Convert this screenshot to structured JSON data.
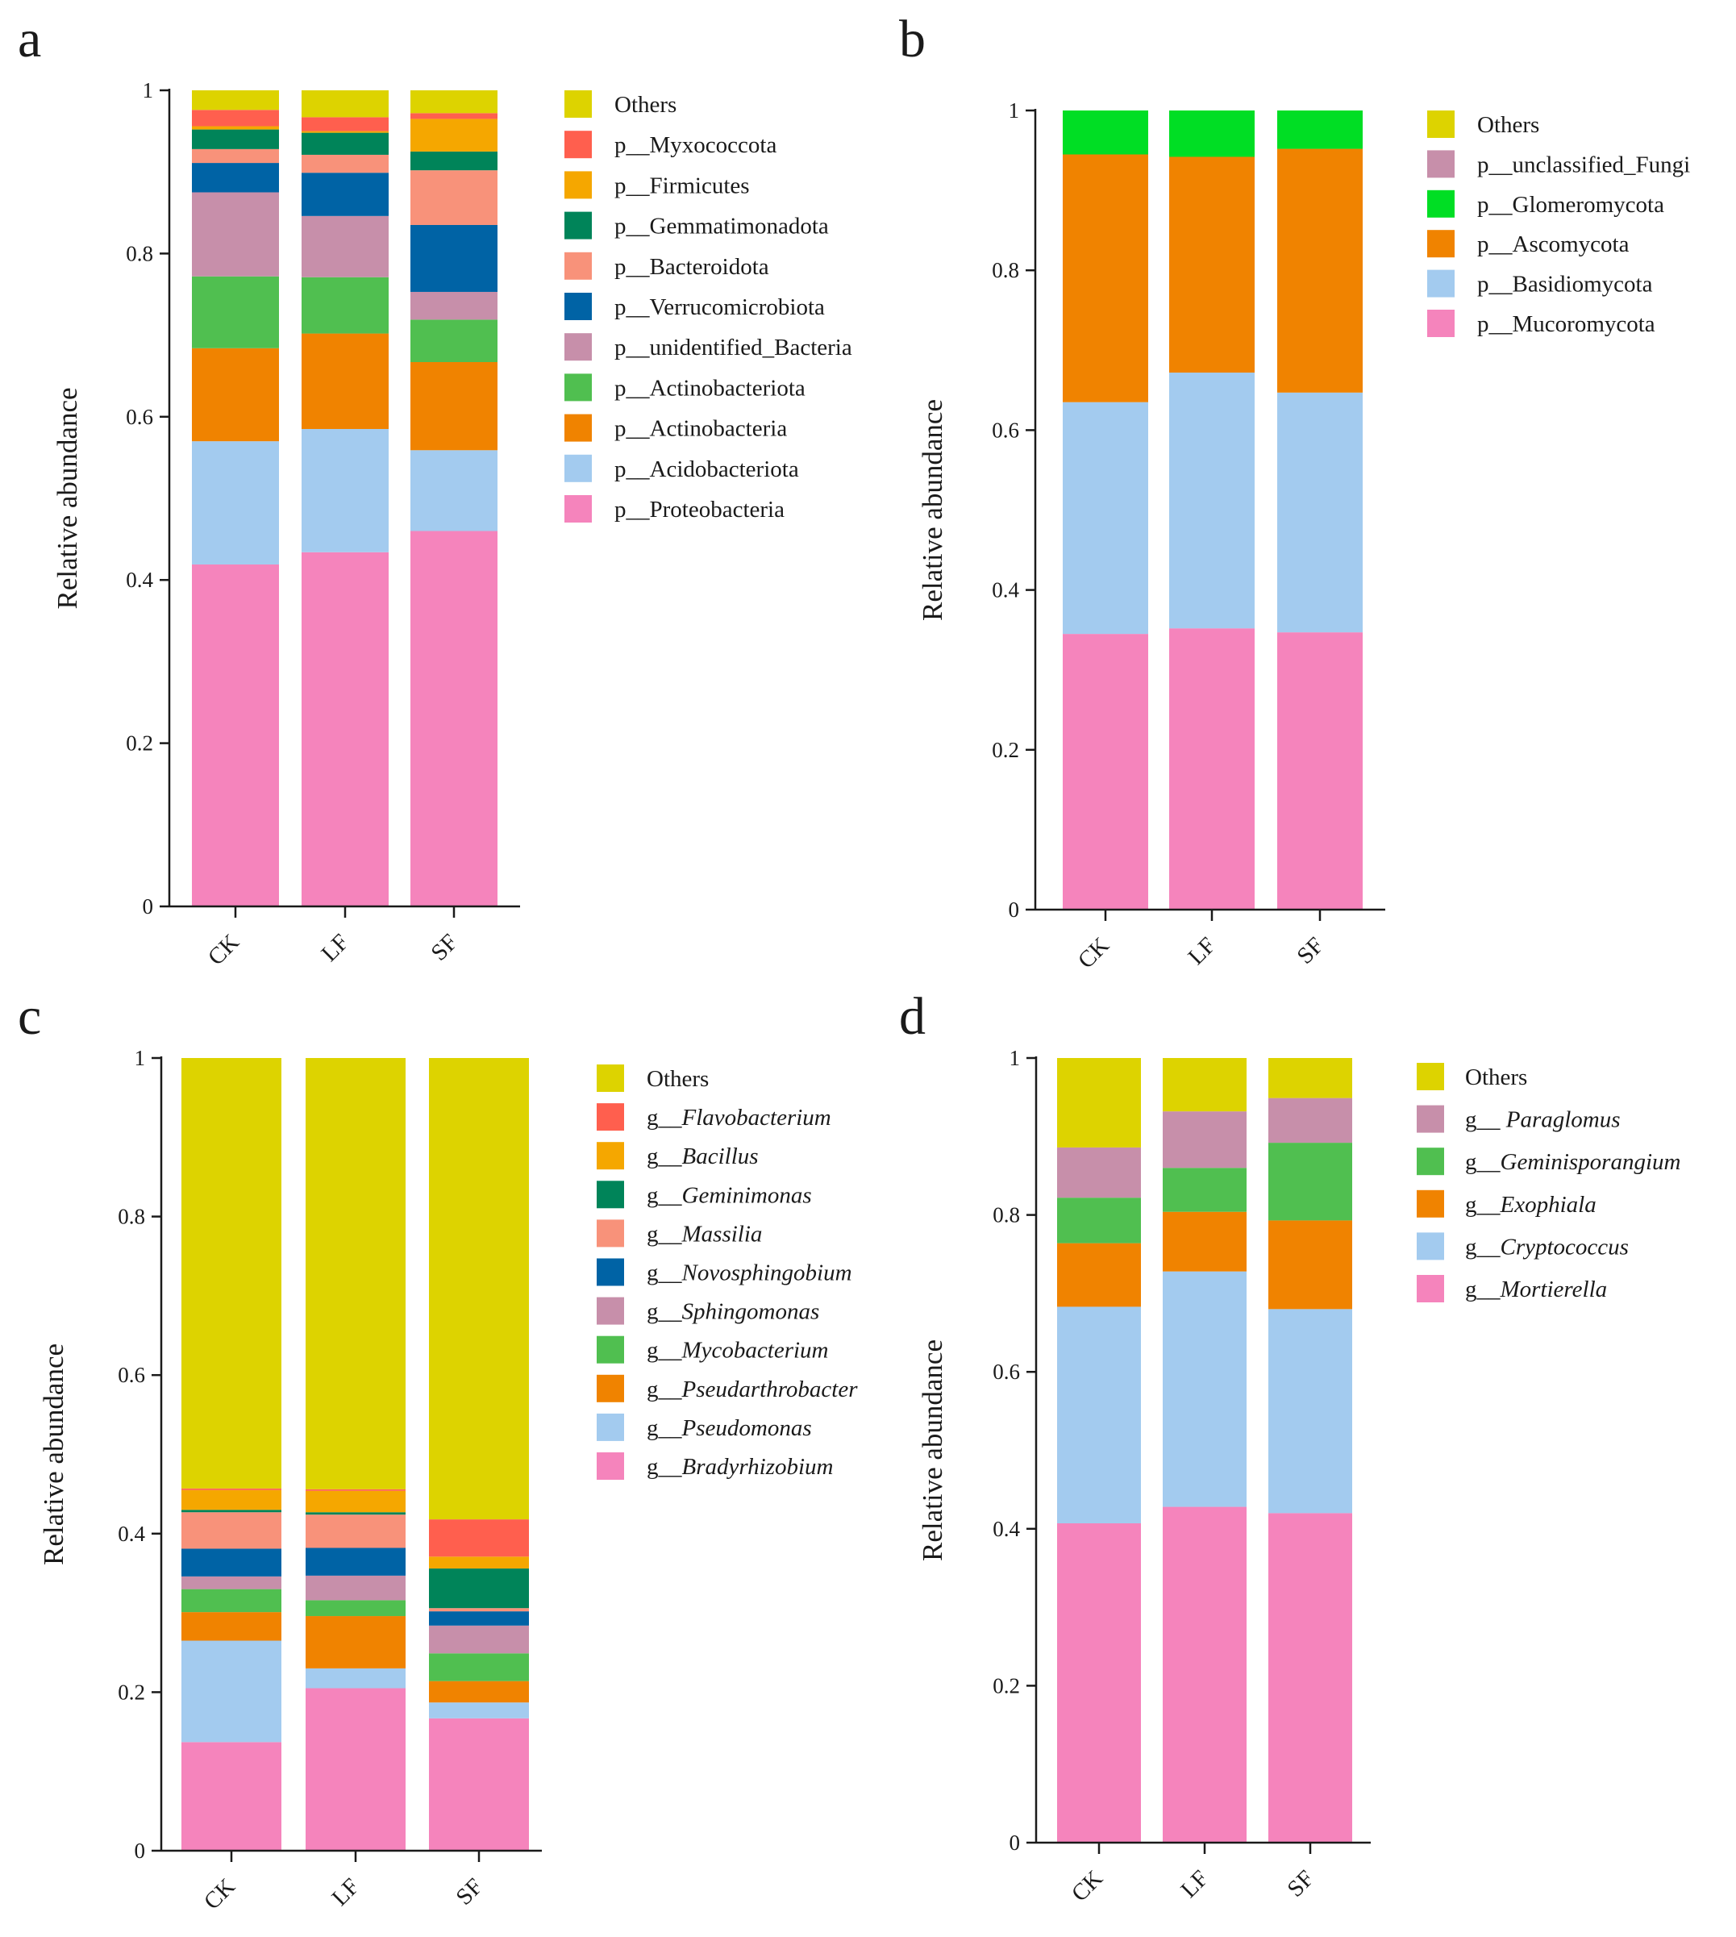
{
  "chart_data": [
    {
      "panel": "a",
      "type": "stacked-bar",
      "ylabel": "Relative abundance",
      "ylim": [
        0,
        1
      ],
      "yticks": [
        "0",
        "0.2",
        "0.4",
        "0.6",
        "0.8",
        "1"
      ],
      "categories": [
        "CK",
        "LF",
        "SF"
      ],
      "legend_placement": "right",
      "series": [
        {
          "name": "p__Proteobacteria",
          "prefix": "p__",
          "taxon": "Proteobacteria",
          "italic": false,
          "color": "#F584BC",
          "values": [
            0.419,
            0.434,
            0.46
          ]
        },
        {
          "name": "p__Acidobacteriota",
          "prefix": "p__",
          "taxon": "Acidobacteriota",
          "italic": false,
          "color": "#A3CBEF",
          "values": [
            0.151,
            0.151,
            0.099
          ]
        },
        {
          "name": "p__Actinobacteria",
          "prefix": "p__",
          "taxon": "Actinobacteria",
          "italic": false,
          "color": "#F08300",
          "values": [
            0.114,
            0.117,
            0.108
          ]
        },
        {
          "name": "p__Actinobacteriota",
          "prefix": "p__",
          "taxon": "Actinobacteriota",
          "italic": false,
          "color": "#50BF50",
          "values": [
            0.088,
            0.069,
            0.052
          ]
        },
        {
          "name": "p__unidentified_Bacteria",
          "prefix": "p__",
          "taxon": "unidentified_Bacteria",
          "italic": false,
          "color": "#C78FAA",
          "values": [
            0.103,
            0.075,
            0.034
          ]
        },
        {
          "name": "p__Verrucomicrobiota",
          "prefix": "p__",
          "taxon": "Verrucomicrobiota",
          "italic": false,
          "color": "#0063A5",
          "values": [
            0.036,
            0.053,
            0.082
          ]
        },
        {
          "name": "p__Bacteroidota",
          "prefix": "p__",
          "taxon": "Bacteroidota",
          "italic": false,
          "color": "#F8927A",
          "values": [
            0.017,
            0.022,
            0.067
          ]
        },
        {
          "name": "p__Gemmatimonadota",
          "prefix": "p__",
          "taxon": "Gemmatimonadota",
          "italic": false,
          "color": "#008459",
          "values": [
            0.024,
            0.027,
            0.023
          ]
        },
        {
          "name": "p__Firmicutes",
          "prefix": "p__",
          "taxon": "Firmicutes",
          "italic": false,
          "color": "#F5A700",
          "values": [
            0.004,
            0.002,
            0.04
          ]
        },
        {
          "name": "p__Myxococcota",
          "prefix": "p__",
          "taxon": "Myxococcota",
          "italic": false,
          "color": "#FF5F4E",
          "values": [
            0.02,
            0.017,
            0.007
          ]
        },
        {
          "name": "Others",
          "prefix": "",
          "taxon": "Others",
          "italic": false,
          "color": "#DDD300",
          "values": [
            0.024,
            0.033,
            0.028
          ]
        }
      ]
    },
    {
      "panel": "b",
      "type": "stacked-bar",
      "ylabel": "Relative abundance",
      "ylim": [
        0,
        1
      ],
      "yticks": [
        "0",
        "0.2",
        "0.4",
        "0.6",
        "0.8",
        "1"
      ],
      "categories": [
        "CK",
        "LF",
        "SF"
      ],
      "legend_placement": "right",
      "series": [
        {
          "name": "p__Mucoromycota",
          "prefix": "p__",
          "taxon": "Mucoromycota",
          "italic": false,
          "color": "#F584BC",
          "values": [
            0.345,
            0.352,
            0.347
          ]
        },
        {
          "name": "p__Basidiomycota",
          "prefix": "p__",
          "taxon": "Basidiomycota",
          "italic": false,
          "color": "#A3CBEF",
          "values": [
            0.29,
            0.32,
            0.3
          ]
        },
        {
          "name": "p__Ascomycota",
          "prefix": "p__",
          "taxon": "Ascomycota",
          "italic": false,
          "color": "#F08300",
          "values": [
            0.31,
            0.27,
            0.305
          ]
        },
        {
          "name": "p__Glomeromycota",
          "prefix": "p__",
          "taxon": "Glomeromycota",
          "italic": false,
          "color": "#00DE24",
          "values": [
            0.055,
            0.058,
            0.048
          ]
        },
        {
          "name": "p__unclassified_Fungi",
          "prefix": "p__",
          "taxon": "unclassified_Fungi",
          "italic": false,
          "color": "#C78FAA",
          "values": [
            0.0,
            0.0,
            0.0
          ]
        },
        {
          "name": "Others",
          "prefix": "",
          "taxon": "Others",
          "italic": false,
          "color": "#DDD300",
          "values": [
            0.0,
            0.0,
            0.0
          ]
        }
      ]
    },
    {
      "panel": "c",
      "type": "stacked-bar",
      "ylabel": "Relative abundance",
      "ylim": [
        0,
        1
      ],
      "yticks": [
        "0",
        "0.2",
        "0.4",
        "0.6",
        "0.8",
        "1"
      ],
      "categories": [
        "CK",
        "LF",
        "SF"
      ],
      "legend_placement": "right",
      "series": [
        {
          "name": "g__Bradyrhizobium",
          "prefix": "g__",
          "taxon": "Bradyrhizobium",
          "italic": true,
          "color": "#F584BC",
          "values": [
            0.137,
            0.205,
            0.167
          ]
        },
        {
          "name": "g__Pseudomonas",
          "prefix": "g__",
          "taxon": "Pseudomonas",
          "italic": true,
          "color": "#A3CBEF",
          "values": [
            0.128,
            0.025,
            0.02
          ]
        },
        {
          "name": "g__Pseudarthrobacter",
          "prefix": "g__",
          "taxon": "Pseudarthrobacter",
          "italic": true,
          "color": "#F08300",
          "values": [
            0.036,
            0.066,
            0.027
          ]
        },
        {
          "name": "g__Mycobacterium",
          "prefix": "g__",
          "taxon": "Mycobacterium",
          "italic": true,
          "color": "#50BF50",
          "values": [
            0.029,
            0.02,
            0.035
          ]
        },
        {
          "name": "g__Sphingomonas",
          "prefix": "g__",
          "taxon": "Sphingomonas",
          "italic": true,
          "color": "#C78FAA",
          "values": [
            0.016,
            0.031,
            0.035
          ]
        },
        {
          "name": "g__Novosphingobium",
          "prefix": "g__",
          "taxon": "Novosphingobium",
          "italic": true,
          "color": "#0063A5",
          "values": [
            0.035,
            0.035,
            0.018
          ]
        },
        {
          "name": "g__Massilia",
          "prefix": "g__",
          "taxon": "Massilia",
          "italic": true,
          "color": "#F8927A",
          "values": [
            0.046,
            0.042,
            0.004
          ]
        },
        {
          "name": "g__Geminimonas",
          "prefix": "g__",
          "taxon": "Geminimonas",
          "italic": true,
          "color": "#008459",
          "values": [
            0.003,
            0.003,
            0.05
          ]
        },
        {
          "name": "g__Bacillus",
          "prefix": "g__",
          "taxon": "Bacillus",
          "italic": true,
          "color": "#F5A700",
          "values": [
            0.025,
            0.027,
            0.015
          ]
        },
        {
          "name": "g__Flavobacterium",
          "prefix": "g__",
          "taxon": "Flavobacterium",
          "italic": true,
          "color": "#FF5F4E",
          "values": [
            0.002,
            0.002,
            0.047
          ]
        },
        {
          "name": "Others",
          "prefix": "",
          "taxon": "Others",
          "italic": false,
          "color": "#DDD300",
          "values": [
            0.543,
            0.544,
            0.582
          ]
        }
      ]
    },
    {
      "panel": "d",
      "type": "stacked-bar",
      "ylabel": "Relative abundance",
      "ylim": [
        0,
        1
      ],
      "yticks": [
        "0",
        "0.2",
        "0.4",
        "0.6",
        "0.8",
        "1"
      ],
      "categories": [
        "CK",
        "LF",
        "SF"
      ],
      "legend_placement": "right",
      "series": [
        {
          "name": "g__Mortierella",
          "prefix": "g__",
          "taxon": "Mortierella",
          "italic": true,
          "color": "#F584BC",
          "values": [
            0.407,
            0.428,
            0.42
          ]
        },
        {
          "name": "g__Cryptococcus",
          "prefix": "g__",
          "taxon": "Cryptococcus",
          "italic": true,
          "color": "#A3CBEF",
          "values": [
            0.276,
            0.3,
            0.26
          ]
        },
        {
          "name": "g__Exophiala",
          "prefix": "g__",
          "taxon": "Exophiala",
          "italic": true,
          "color": "#F08300",
          "values": [
            0.081,
            0.076,
            0.113
          ]
        },
        {
          "name": "g__Geminisporangium",
          "prefix": "g__",
          "taxon": "Geminisporangium",
          "italic": true,
          "color": "#50BF50",
          "values": [
            0.058,
            0.056,
            0.099
          ]
        },
        {
          "name": "g__ Paraglomus",
          "prefix": "g__ ",
          "taxon": "Paraglomus",
          "italic": true,
          "color": "#C78FAA",
          "values": [
            0.064,
            0.072,
            0.057
          ]
        },
        {
          "name": "Others",
          "prefix": "",
          "taxon": "Others",
          "italic": false,
          "color": "#DDD300",
          "values": [
            0.114,
            0.068,
            0.051
          ]
        }
      ]
    }
  ]
}
